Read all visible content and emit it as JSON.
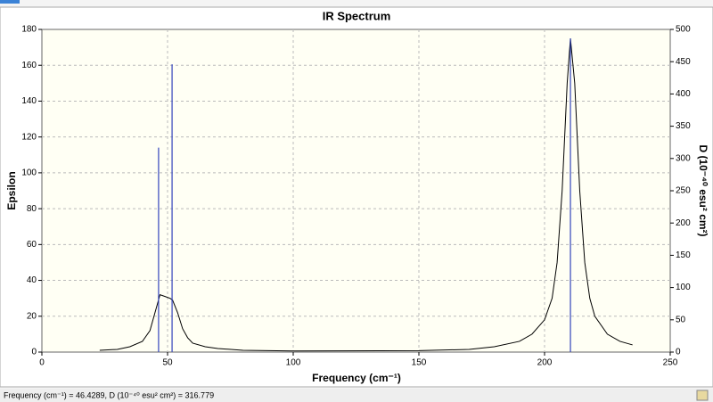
{
  "chart_data": {
    "type": "ir-spectrum",
    "title": "IR Spectrum",
    "xlabel": "Frequency (cm⁻¹)",
    "ylabel": "Epsilon",
    "y2label": "D (10⁻⁴⁰ esu² cm²)",
    "xlim": [
      0,
      250
    ],
    "xticks": [
      0,
      50,
      100,
      150,
      200,
      250
    ],
    "ylim": [
      0,
      180
    ],
    "yticks": [
      0,
      20,
      40,
      60,
      80,
      100,
      120,
      140,
      160,
      180
    ],
    "y2lim": [
      0,
      500
    ],
    "y2ticks": [
      0,
      50,
      100,
      150,
      200,
      250,
      300,
      350,
      400,
      450,
      500
    ],
    "grid": true,
    "series": [
      {
        "type": "line",
        "color": "#000000",
        "x": [
          23,
          30,
          35,
          40,
          43,
          45,
          47,
          49,
          51,
          52,
          54,
          56,
          58,
          60,
          65,
          70,
          80,
          100,
          150,
          170,
          180,
          190,
          195,
          200,
          203,
          205,
          207,
          209,
          210.3,
          212,
          214,
          216,
          218,
          220,
          225,
          230,
          235
        ],
        "values": [
          1,
          1.5,
          3,
          6,
          12,
          22,
          32,
          31,
          30,
          29,
          22,
          13,
          8,
          5,
          3,
          2,
          1,
          0.6,
          0.8,
          1.5,
          3,
          6,
          10,
          18,
          30,
          50,
          90,
          150,
          175,
          150,
          90,
          50,
          30,
          20,
          10,
          6,
          4
        ]
      },
      {
        "type": "stick",
        "axis": "y2",
        "color": "#3344bb",
        "x": [
          46.4289,
          51.8,
          210.3
        ],
        "values": [
          316.779,
          446,
          486
        ]
      }
    ]
  },
  "status_bar": "Frequency (cm⁻¹) = 46.4289, D (10⁻⁴⁰ esu² cm²) = 316.779"
}
